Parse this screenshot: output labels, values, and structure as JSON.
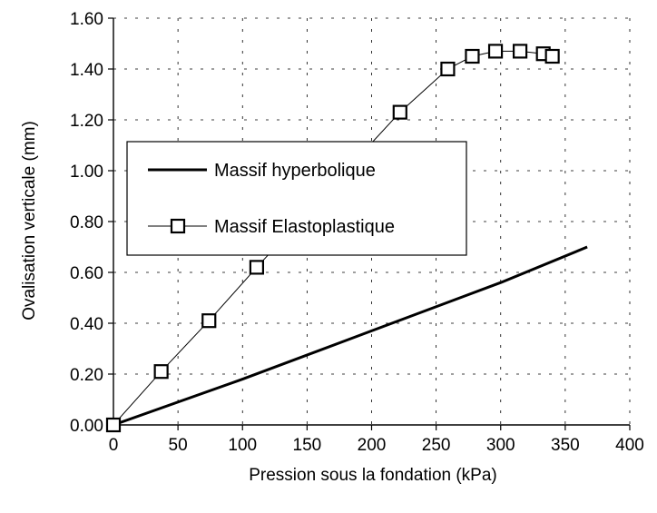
{
  "chart_data": {
    "type": "line",
    "xlabel": "Pression sous la fondation (kPa)",
    "ylabel": "Ovalisation verticale (mm)",
    "xlim": [
      0,
      400
    ],
    "ylim": [
      0,
      1.6
    ],
    "x_ticks": [
      "0",
      "50",
      "100",
      "150",
      "200",
      "250",
      "300",
      "350",
      "400"
    ],
    "y_ticks": [
      "0.00",
      "0.20",
      "0.40",
      "0.60",
      "0.80",
      "1.00",
      "1.20",
      "1.40",
      "1.60"
    ],
    "grid": "dashed",
    "legend_position": "middle-left",
    "series": [
      {
        "name": "Massif hyperbolique",
        "style": "thick-line",
        "color": "#000000",
        "x": [
          0,
          100,
          200,
          300,
          367
        ],
        "y": [
          0,
          0.18,
          0.37,
          0.56,
          0.7
        ]
      },
      {
        "name": "Massif Elastoplastique",
        "style": "line-square-markers",
        "color": "#000000",
        "x": [
          0,
          37,
          74,
          111,
          222,
          259,
          278,
          296,
          315,
          333,
          340
        ],
        "y": [
          0,
          0.21,
          0.41,
          0.62,
          1.23,
          1.4,
          1.45,
          1.47,
          1.47,
          1.46,
          1.45
        ]
      }
    ]
  }
}
